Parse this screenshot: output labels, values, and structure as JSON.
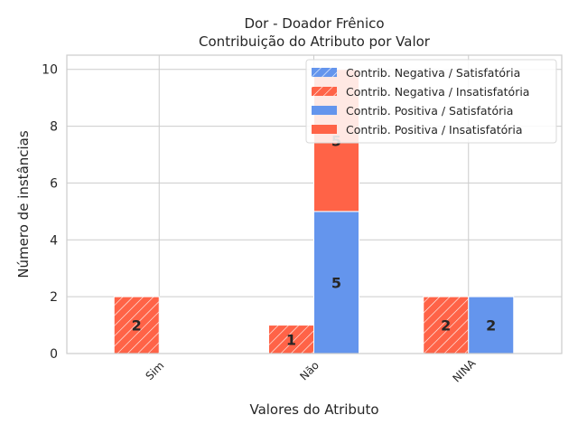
{
  "chart_data": {
    "type": "bar",
    "title_line1": "Dor - Doador Frênico",
    "title_line2": "Contribuição do Atributo por Valor",
    "xlabel": "Valores do Atributo",
    "ylabel": "Número de instâncias",
    "categories": [
      "Sim",
      "Não",
      "NINA"
    ],
    "ylim": [
      0,
      10.5
    ],
    "yticks": [
      0,
      2,
      4,
      6,
      8,
      10
    ],
    "grid": true,
    "legend_position": "top-right",
    "series": [
      {
        "name": "Contrib. Negativa / Satisfatória",
        "group": "negativa",
        "color": "#6495ED",
        "hatch": true,
        "values": [
          0,
          0,
          0
        ]
      },
      {
        "name": "Contrib. Negativa / Insatisfatória",
        "group": "negativa",
        "color": "#FF6347",
        "hatch": true,
        "values": [
          2,
          1,
          2
        ]
      },
      {
        "name": "Contrib. Positiva / Satisfatória",
        "group": "positiva",
        "color": "#6495ED",
        "hatch": false,
        "values": [
          0,
          5,
          2
        ]
      },
      {
        "name": "Contrib. Positiva / Insatisfatória",
        "group": "positiva",
        "color": "#FF6347",
        "hatch": false,
        "values": [
          0,
          5,
          0
        ]
      }
    ],
    "data_labels": [
      {
        "category": "Sim",
        "group": "negativa",
        "text": "2"
      },
      {
        "category": "Não",
        "group": "negativa",
        "text": "1"
      },
      {
        "category": "Não",
        "group": "positiva",
        "text": "5"
      },
      {
        "category": "Não",
        "group": "positiva_top",
        "text": "5"
      },
      {
        "category": "NINA",
        "group": "negativa",
        "text": "2"
      },
      {
        "category": "NINA",
        "group": "positiva",
        "text": "2"
      }
    ]
  }
}
